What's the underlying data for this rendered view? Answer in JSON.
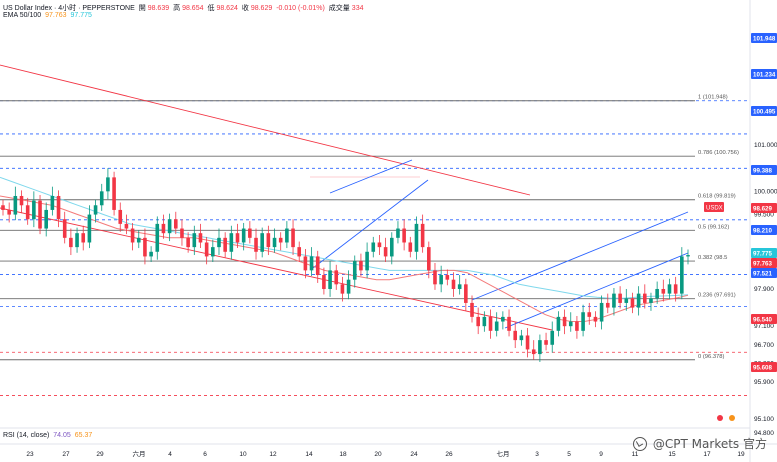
{
  "header": {
    "symbol": "US Dollar Index · 4小时 · PEPPERSTONE",
    "o_label": "開",
    "o_val": "98.639",
    "h_label": "高",
    "h_val": "98.654",
    "l_label": "低",
    "l_val": "98.624",
    "c_label": "收",
    "c_val": "98.629",
    "chg": "-0.010 (-0.01%)",
    "vol_label": "成交量",
    "vol_val": "334",
    "ema_label": "EMA 50/100",
    "ema50": "97.763",
    "ema100": "97.775"
  },
  "rsi": {
    "label": "RSI (14, close)",
    "v1": "74.05",
    "v2": "65.37"
  },
  "watermark": "@CPT Markets 官方",
  "colors": {
    "up": "#089981",
    "down": "#f23645",
    "ema50": "#f47a7a",
    "ema100": "#7fd8ec",
    "fib": "#6b6b6b",
    "channel_red": "#f23645",
    "channel_blue": "#2962ff",
    "tag_blue": "#2962ff",
    "tag_red": "#f23645"
  },
  "chart_data": {
    "type": "candlestick",
    "yaxis_ticks": [
      "101.000",
      "100.000",
      "99.500",
      "99.100",
      "98.700",
      "97.900",
      "97.100",
      "96.700",
      "96.300",
      "95.900",
      "95.100",
      "94.800"
    ],
    "xaxis_ticks": [
      "23",
      "27",
      "29",
      "六月",
      "4",
      "6",
      "10",
      "12",
      "14",
      "18",
      "20",
      "24",
      "26",
      "七月",
      "3",
      "5",
      "9",
      "11",
      "15",
      "17",
      "19"
    ],
    "fib_levels": [
      {
        "label": "1 (101.948)",
        "value": 101.948
      },
      {
        "label": "0.786 (100.756)",
        "value": 100.756
      },
      {
        "label": "0.618 (99.819)",
        "value": 99.819
      },
      {
        "label": "0.5 (99.162)",
        "value": 99.162
      },
      {
        "label": "0.382 (98.5",
        "value": 98.5
      },
      {
        "label": "0.236 (97.691)",
        "value": 97.691
      },
      {
        "label": "0 (96.378)",
        "value": 96.378
      }
    ],
    "price_tags": [
      {
        "text": "101.948",
        "style": "blue"
      },
      {
        "text": "101.234",
        "style": "blue"
      },
      {
        "text": "100.495",
        "style": "blue"
      },
      {
        "text": "99.388",
        "style": "blue"
      },
      {
        "text": "USDX",
        "style": "redlabel"
      },
      {
        "text": "98.629",
        "style": "red"
      },
      {
        "text": "98.210",
        "style": "blue"
      },
      {
        "text": "97.775",
        "style": "teal"
      },
      {
        "text": "97.763",
        "style": "red"
      },
      {
        "text": "97.521",
        "style": "blue"
      },
      {
        "text": "96.540",
        "style": "red"
      },
      {
        "text": "95.608",
        "style": "red"
      }
    ],
    "dashed_levels": [
      {
        "value": 101.948,
        "color": "blue"
      },
      {
        "value": 101.234,
        "color": "blue"
      },
      {
        "value": 100.495,
        "color": "blue"
      },
      {
        "value": 99.388,
        "color": "blue"
      },
      {
        "value": 98.21,
        "color": "blue"
      },
      {
        "value": 97.521,
        "color": "blue"
      },
      {
        "value": 96.54,
        "color": "red"
      },
      {
        "value": 95.608,
        "color": "red"
      }
    ],
    "closes": [
      99.6,
      99.5,
      99.9,
      99.7,
      99.4,
      99.8,
      99.2,
      99.6,
      99.9,
      99.4,
      99.0,
      98.8,
      99.1,
      98.9,
      99.5,
      99.7,
      100.0,
      100.3,
      99.6,
      99.3,
      99.2,
      98.9,
      99.0,
      98.6,
      98.7,
      99.3,
      99.1,
      99.4,
      99.2,
      99.0,
      98.8,
      99.1,
      98.9,
      98.6,
      98.8,
      99.0,
      98.7,
      99.1,
      98.9,
      99.2,
      99.0,
      98.7,
      99.1,
      98.8,
      99.0,
      98.9,
      99.2,
      98.8,
      98.6,
      98.3,
      98.6,
      98.2,
      97.9,
      98.3,
      98.0,
      97.8,
      98.1,
      98.5,
      98.3,
      98.7,
      98.9,
      98.8,
      98.6,
      99.0,
      99.2,
      98.9,
      98.7,
      99.3,
      98.8,
      98.3,
      98.0,
      98.2,
      98.1,
      97.9,
      98.0,
      97.6,
      97.3,
      97.1,
      97.3,
      97.0,
      97.2,
      97.3,
      97.0,
      96.8,
      96.9,
      96.6,
      96.5,
      96.8,
      96.7,
      97.0,
      97.3,
      97.1,
      97.2,
      97.0,
      97.4,
      97.3,
      97.2,
      97.6,
      97.5,
      97.8,
      97.6,
      97.7,
      97.5,
      97.8,
      97.6,
      97.7,
      97.9,
      97.8,
      98.0,
      97.8,
      98.6,
      98.629
    ],
    "ema50": [
      99.9,
      99.85,
      99.8,
      99.75,
      99.7,
      99.6,
      99.5,
      99.4,
      99.3,
      99.2,
      99.15,
      99.1,
      99.05,
      99.0,
      99.0,
      99.0,
      98.95,
      98.9,
      98.85,
      98.8,
      98.75,
      98.7,
      98.6,
      98.5,
      98.4,
      98.3,
      98.25,
      98.2,
      98.15,
      98.1,
      98.1,
      98.15,
      98.2,
      98.25,
      98.3,
      98.3,
      98.25,
      98.1,
      97.95,
      97.8,
      97.65,
      97.5,
      97.35,
      97.25,
      97.2,
      97.2,
      97.25,
      97.35,
      97.45,
      97.55,
      97.6,
      97.65,
      97.7,
      97.763
    ],
    "ema100": [
      100.3,
      100.2,
      100.1,
      100.0,
      99.9,
      99.8,
      99.7,
      99.6,
      99.5,
      99.4,
      99.3,
      99.25,
      99.2,
      99.15,
      99.1,
      99.05,
      99.0,
      98.95,
      98.9,
      98.85,
      98.8,
      98.75,
      98.7,
      98.65,
      98.6,
      98.55,
      98.5,
      98.45,
      98.4,
      98.35,
      98.3,
      98.3,
      98.3,
      98.3,
      98.3,
      98.3,
      98.3,
      98.25,
      98.2,
      98.1,
      98.0,
      97.95,
      97.9,
      97.85,
      97.8,
      97.75,
      97.72,
      97.7,
      97.7,
      97.72,
      97.74,
      97.75,
      97.76,
      97.775
    ]
  }
}
